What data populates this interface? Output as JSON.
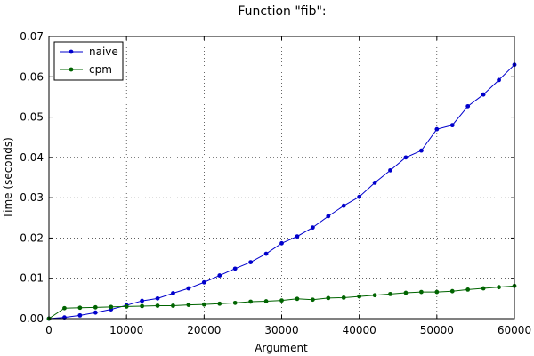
{
  "chart_data": {
    "type": "line",
    "title": "Function \"fib\":",
    "xlabel": "Argument",
    "ylabel": "Time (seconds)",
    "xlim": [
      0,
      60000
    ],
    "ylim": [
      0,
      0.07
    ],
    "xticks": [
      0,
      10000,
      20000,
      30000,
      40000,
      50000,
      60000
    ],
    "xtick_labels": [
      "0",
      "10000",
      "20000",
      "30000",
      "40000",
      "50000",
      "60000"
    ],
    "yticks": [
      0,
      0.01,
      0.02,
      0.03,
      0.04,
      0.05,
      0.06,
      0.07
    ],
    "ytick_labels": [
      "0.00",
      "0.01",
      "0.02",
      "0.03",
      "0.04",
      "0.05",
      "0.06",
      "0.07"
    ],
    "grid": true,
    "legend_position": "top-left",
    "x": [
      0,
      2000,
      4000,
      6000,
      8000,
      10000,
      12000,
      14000,
      16000,
      18000,
      20000,
      22000,
      24000,
      26000,
      28000,
      30000,
      32000,
      34000,
      36000,
      38000,
      40000,
      42000,
      44000,
      46000,
      48000,
      50000,
      52000,
      54000,
      56000,
      58000,
      60000
    ],
    "series": [
      {
        "name": "naive",
        "color": "#0000cc",
        "values": [
          0.0,
          0.0003,
          0.0008,
          0.0015,
          0.0023,
          0.0033,
          0.0044,
          0.005,
          0.0063,
          0.0075,
          0.009,
          0.0107,
          0.0124,
          0.014,
          0.0161,
          0.0187,
          0.0204,
          0.0226,
          0.0254,
          0.028,
          0.0302,
          0.0337,
          0.0368,
          0.04,
          0.0417,
          0.047,
          0.048,
          0.0527,
          0.0556,
          0.0592,
          0.063
        ]
      },
      {
        "name": "cpm",
        "color": "#006400",
        "values": [
          0.0,
          0.0026,
          0.0027,
          0.0028,
          0.0029,
          0.003,
          0.0031,
          0.0032,
          0.0032,
          0.0034,
          0.0035,
          0.0037,
          0.0039,
          0.0042,
          0.0043,
          0.0045,
          0.0049,
          0.0047,
          0.0051,
          0.0052,
          0.0055,
          0.0058,
          0.0061,
          0.0064,
          0.0066,
          0.0066,
          0.0068,
          0.0072,
          0.0075,
          0.0078,
          0.0081
        ]
      }
    ]
  }
}
